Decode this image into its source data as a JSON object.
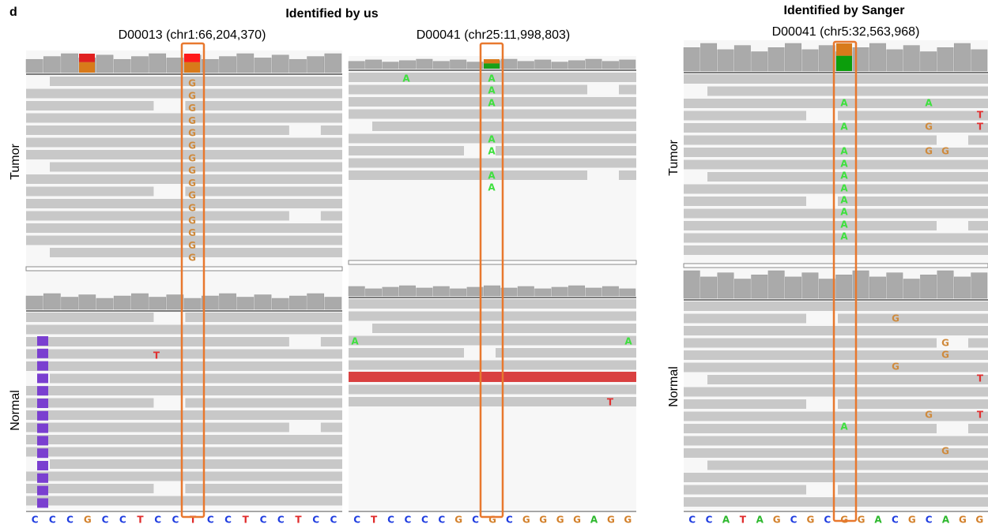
{
  "panel_label": "d",
  "groups": [
    {
      "title": "Identified by us"
    },
    {
      "title": "Identified by Sanger"
    }
  ],
  "panels": [
    {
      "subtitle": "D00013 (chr1:66,204,370)",
      "tumor_label": "Tumor",
      "normal_label": "Normal",
      "reference": [
        "C",
        "C",
        "C",
        "G",
        "C",
        "C",
        "T",
        "C",
        "C",
        "T",
        "C",
        "C",
        "T",
        "C",
        "C",
        "T",
        "C",
        "C"
      ],
      "tumor_bases": [
        "G",
        "G",
        "G",
        "G",
        "G",
        "G",
        "G",
        "G",
        "G",
        "G",
        "G",
        "G",
        "G",
        "G",
        "G"
      ],
      "normal_bases": [
        "T"
      ]
    },
    {
      "subtitle": "D00041 (chr25:11,998,803)",
      "reference": [
        "C",
        "T",
        "C",
        "C",
        "C",
        "C",
        "G",
        "C",
        "G",
        "C",
        "G",
        "G",
        "G",
        "G",
        "A",
        "G",
        "G"
      ],
      "tumor_bases": [
        "A",
        "A",
        "A",
        "A",
        "A",
        "A",
        "A",
        "A"
      ],
      "normal_bases": [
        "A",
        "A",
        "T"
      ]
    },
    {
      "subtitle": "D00041 (chr5:32,563,968)",
      "tumor_label": "Tumor",
      "normal_label": "Normal",
      "reference": [
        "C",
        "C",
        "A",
        "T",
        "A",
        "G",
        "C",
        "G",
        "C",
        "G",
        "G",
        "A",
        "C",
        "G",
        "C",
        "A",
        "G",
        "G"
      ],
      "tumor_bases": [
        "A",
        "A",
        "T",
        "A",
        "G",
        "T",
        "A",
        "G",
        "G",
        "A",
        "A",
        "A",
        "A",
        "A",
        "A",
        "A"
      ],
      "normal_bases": [
        "G",
        "G",
        "G",
        "G",
        "T",
        "G",
        "T",
        "A",
        "G"
      ]
    }
  ]
}
